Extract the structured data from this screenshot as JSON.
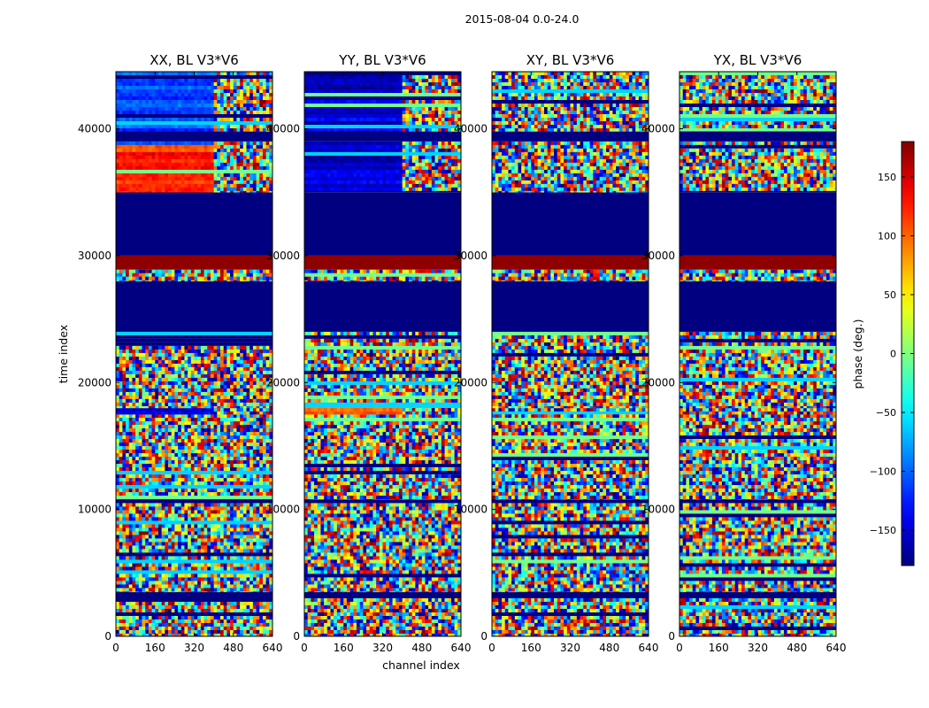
{
  "chart_data": {
    "type": "heatmap",
    "title": "2015-08-04 0.0-24.0",
    "xlabel": "channel index",
    "ylabel": "time index",
    "xlim": [
      0,
      640
    ],
    "ylim": [
      0,
      44500
    ],
    "x_ticks": [
      0,
      160,
      320,
      480,
      640
    ],
    "y_ticks": [
      0,
      10000,
      20000,
      30000,
      40000
    ],
    "panels": [
      {
        "name": "XX, BL V3*V6"
      },
      {
        "name": "YY, BL V3*V6"
      },
      {
        "name": "XY, BL V3*V6"
      },
      {
        "name": "YX, BL V3*V6"
      }
    ],
    "colorbar": {
      "label": "phase (deg.)",
      "range": [
        -180,
        180
      ],
      "ticks": [
        -150,
        -100,
        -50,
        0,
        50,
        100,
        150
      ],
      "tick_labels": [
        "−150",
        "−100",
        "−50",
        "0",
        "50",
        "100",
        "150"
      ],
      "colormap": "jet"
    },
    "bands": [
      {
        "from": 0,
        "to": 3000,
        "kind": "noise"
      },
      {
        "from": 3000,
        "to": 3500,
        "kind": "const",
        "value": -180
      },
      {
        "from": 3500,
        "to": 10500,
        "kind": "noise"
      },
      {
        "from": 10500,
        "to": 10800,
        "kind": "const",
        "value": -180
      },
      {
        "from": 10800,
        "to": 17500,
        "kind": "noise"
      },
      {
        "from": 17500,
        "to": 18000,
        "kind": "partial"
      },
      {
        "from": 18000,
        "to": 24000,
        "kind": "noise"
      },
      {
        "from": 24000,
        "to": 28000,
        "kind": "const",
        "value": -180
      },
      {
        "from": 28000,
        "to": 28900,
        "kind": "noise"
      },
      {
        "from": 28900,
        "to": 30000,
        "kind": "const",
        "value": 175
      },
      {
        "from": 30000,
        "to": 35000,
        "kind": "const",
        "value": -180
      },
      {
        "from": 35000,
        "to": 39000,
        "kind": "partial"
      },
      {
        "from": 39000,
        "to": 39800,
        "kind": "const",
        "value": -180
      },
      {
        "from": 39800,
        "to": 44500,
        "kind": "partial"
      }
    ]
  }
}
